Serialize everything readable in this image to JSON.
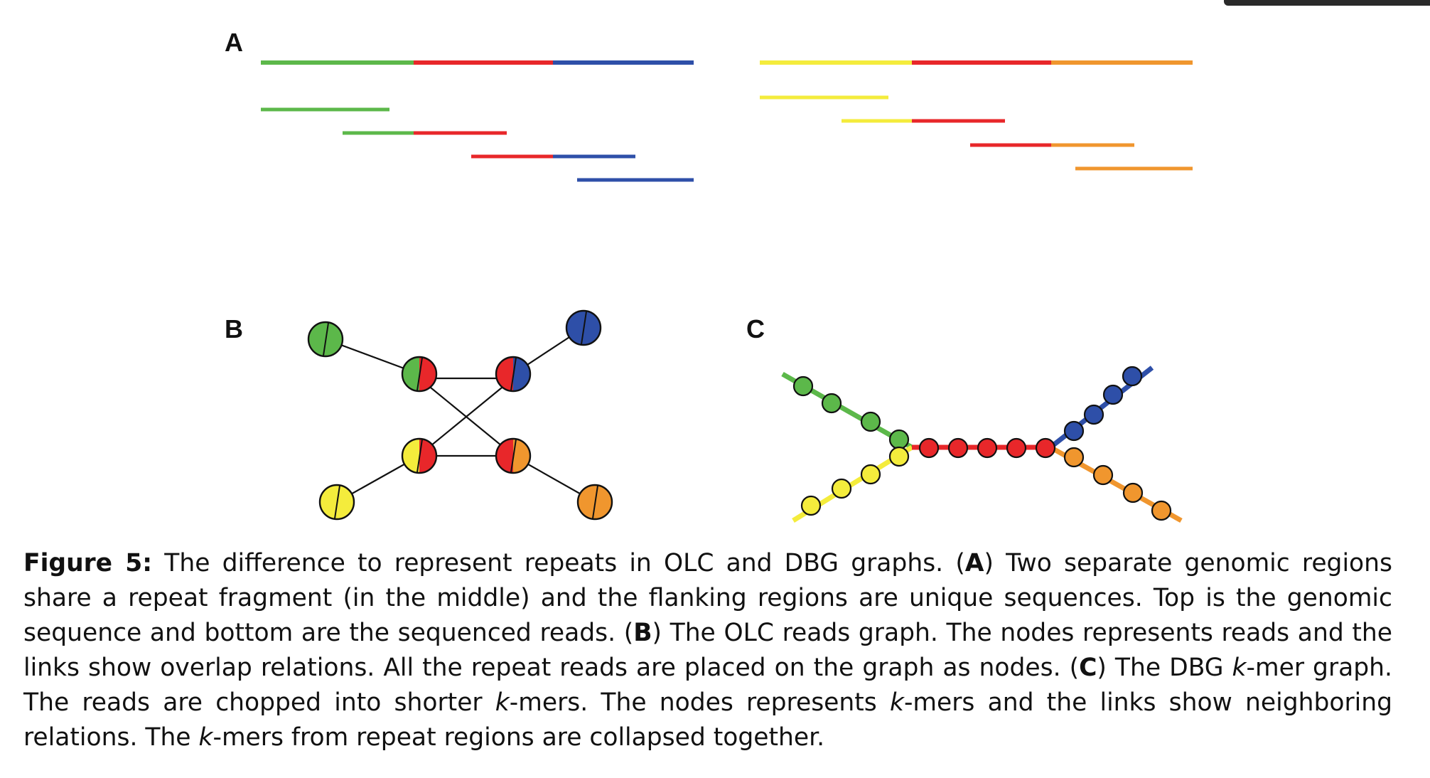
{
  "panel_labels": {
    "a": "A",
    "b": "B",
    "c": "C"
  },
  "colors": {
    "green": "#5cb84a",
    "red": "#e8272a",
    "blue": "#2e4fa8",
    "yellow": "#f4ec3c",
    "orange": "#f0962e",
    "line": "#111111"
  },
  "caption": {
    "figure_label": "Figure 5:",
    "s1": " The difference to represent repeats in OLC and DBG graphs. (",
    "l_a": "A",
    "s2": ") Two separate genomic regions share a repeat fragment (in the middle) and the flanking regions are unique sequences. Top is the genomic sequence and bottom are the sequenced reads. (",
    "l_b": "B",
    "s3": ") The OLC reads graph. The nodes represents reads and the links show overlap relations. All the repeat reads are placed on the graph as nodes. (",
    "l_c": "C",
    "s4": ") The DBG ",
    "k1": "k",
    "s5": "-mer graph. The reads are chopped into shorter ",
    "k2": "k",
    "s6": "-mers. The nodes represents ",
    "k3": "k",
    "s7": "-mers and the links show neighboring relations. The ",
    "k4": "k",
    "s8": "-mers from repeat regions are collapsed together."
  }
}
